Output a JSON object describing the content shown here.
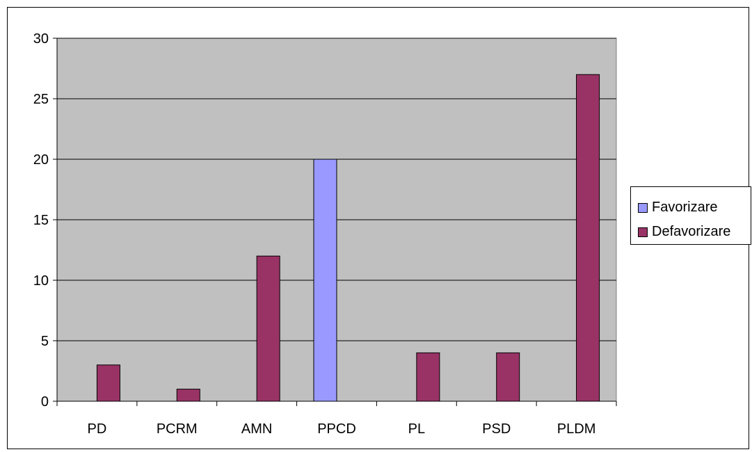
{
  "chart_data": {
    "type": "bar",
    "categories": [
      "PD",
      "PCRM",
      "AMN",
      "PPCD",
      "PL",
      "PSD",
      "PLDM"
    ],
    "series": [
      {
        "name": "Favorizare",
        "color": "#9999ff",
        "values": [
          0,
          0,
          0,
          20,
          0,
          0,
          0
        ]
      },
      {
        "name": "Defavorizare",
        "color": "#993366",
        "values": [
          3,
          1,
          12,
          0,
          4,
          4,
          27
        ]
      }
    ],
    "yticks": [
      "0",
      "5",
      "10",
      "15",
      "20",
      "25",
      "30"
    ],
    "ylim": [
      0,
      30
    ],
    "grid": true,
    "legend_position": "right",
    "plot_background": "#c0c0c0"
  }
}
